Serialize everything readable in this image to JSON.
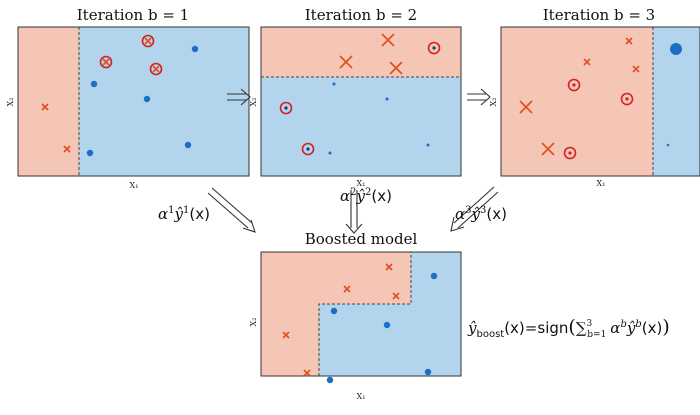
{
  "colors": {
    "region_red": "#f5c6b6",
    "region_blue": "#b2d4ec",
    "cross": "#e0501a",
    "dot": "#1a6fc4",
    "ring": "#d42020",
    "border": "#333333",
    "arrow": "#333333"
  },
  "panels": {
    "iter1": {
      "title": "Iteration b = 1",
      "xlabel": "X₁",
      "ylabel": "X₂",
      "points": [
        {
          "type": "cross",
          "size": "small",
          "ring": false
        },
        {
          "type": "cross",
          "size": "small",
          "ring": false
        },
        {
          "type": "cross",
          "size": "small",
          "ring": true
        },
        {
          "type": "cross",
          "size": "small",
          "ring": true
        },
        {
          "type": "cross",
          "size": "small",
          "ring": true
        },
        {
          "type": "dot",
          "size": "small",
          "ring": false
        },
        {
          "type": "dot",
          "size": "small",
          "ring": false
        },
        {
          "type": "dot",
          "size": "small",
          "ring": false
        },
        {
          "type": "dot",
          "size": "small",
          "ring": false
        },
        {
          "type": "dot",
          "size": "small",
          "ring": false
        }
      ]
    },
    "iter2": {
      "title": "Iteration b = 2",
      "xlabel": "X₁",
      "ylabel": "X₂",
      "points": [
        {
          "type": "cross",
          "size": "large",
          "ring": false
        },
        {
          "type": "cross",
          "size": "large",
          "ring": false
        },
        {
          "type": "cross",
          "size": "large",
          "ring": false
        },
        {
          "type": "dot",
          "size": "tiny",
          "ring": true
        },
        {
          "type": "dot",
          "size": "tiny",
          "ring": true
        },
        {
          "type": "dot",
          "size": "tiny",
          "ring": true
        },
        {
          "type": "dot",
          "size": "tiny",
          "ring": false
        },
        {
          "type": "dot",
          "size": "tiny",
          "ring": false
        },
        {
          "type": "dot",
          "size": "tiny",
          "ring": false
        },
        {
          "type": "dot",
          "size": "tiny",
          "ring": false
        }
      ]
    },
    "iter3": {
      "title": "Iteration b = 3",
      "xlabel": "X₁",
      "ylabel": "X₂",
      "points": [
        {
          "type": "cross",
          "size": "small",
          "ring": false
        },
        {
          "type": "cross",
          "size": "small",
          "ring": false
        },
        {
          "type": "cross",
          "size": "small",
          "ring": false
        },
        {
          "type": "cross",
          "size": "large",
          "ring": false
        },
        {
          "type": "cross",
          "size": "large",
          "ring": false
        },
        {
          "type": "dot",
          "size": "tiny",
          "ring": true
        },
        {
          "type": "dot",
          "size": "tiny",
          "ring": true
        },
        {
          "type": "dot",
          "size": "tiny",
          "ring": true
        },
        {
          "type": "dot",
          "size": "large",
          "ring": false
        },
        {
          "type": "dot",
          "size": "tiny",
          "ring": false
        }
      ]
    },
    "boosted": {
      "title": "Boosted model",
      "xlabel": "X₁",
      "ylabel": "X₂",
      "points": [
        {
          "type": "cross",
          "size": "small",
          "ring": false
        },
        {
          "type": "cross",
          "size": "small",
          "ring": false
        },
        {
          "type": "cross",
          "size": "small",
          "ring": false
        },
        {
          "type": "cross",
          "size": "small",
          "ring": false
        },
        {
          "type": "cross",
          "size": "small",
          "ring": false
        },
        {
          "type": "dot",
          "size": "small",
          "ring": false
        },
        {
          "type": "dot",
          "size": "small",
          "ring": false
        },
        {
          "type": "dot",
          "size": "small",
          "ring": false
        },
        {
          "type": "dot",
          "size": "small",
          "ring": false
        },
        {
          "type": "dot",
          "size": "small",
          "ring": false
        }
      ]
    }
  },
  "weights": {
    "w1": {
      "alpha": "α",
      "sup": "1",
      "yhat": "ŷ",
      "arg": "(x)"
    },
    "w2": {
      "alpha": "α",
      "sup": "2",
      "yhat": "ŷ",
      "arg": "(x)"
    },
    "w3": {
      "alpha": "α",
      "sup": "3",
      "yhat": "ŷ",
      "arg": "(x)"
    }
  },
  "formula": {
    "lhs": "ŷ",
    "lhs_sub": "boost",
    "lhs_arg": "(x)",
    "eq": "=",
    "sign": "sign",
    "lparen": "(",
    "sum": "∑",
    "sum_sup": "3",
    "sum_sub": "b=1",
    "alpha": "α",
    "alpha_sup": "b",
    "yhat": "ŷ",
    "yhat_sup": "b",
    "arg": "(x)",
    "rparen": ")"
  }
}
